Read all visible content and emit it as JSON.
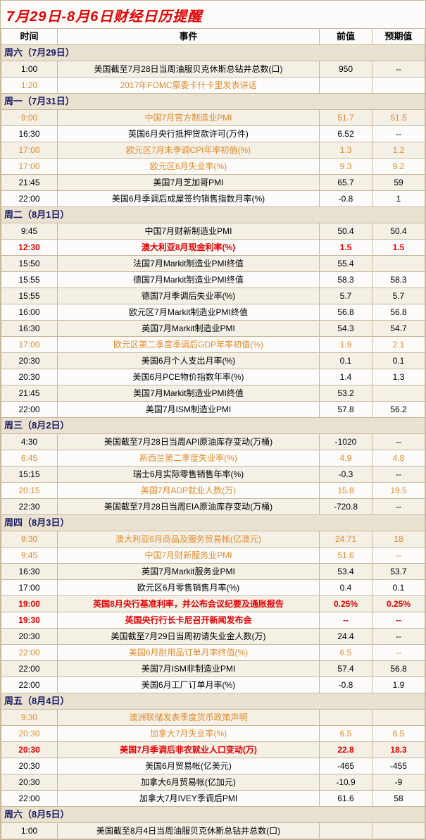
{
  "title": "7月29日-8月6日财经日历提醒",
  "columns": {
    "time": "时间",
    "event": "事件",
    "prev": "前值",
    "exp": "预期值"
  },
  "days": [
    {
      "label": "周六（7月29日）",
      "rows": [
        {
          "t": "1:00",
          "e": "美国截至7月28日当周油服贝克休斯总钻井总数(口)",
          "p": "950",
          "x": "--",
          "cls": "black",
          "alt": true
        },
        {
          "t": "1:20",
          "e": "2017年FOMC票委卡什卡里发表讲话",
          "p": "",
          "x": "",
          "cls": "orange",
          "alt": false
        }
      ]
    },
    {
      "label": "周一（7月31日）",
      "rows": [
        {
          "t": "9:00",
          "e": "中国7月官方制造业PMI",
          "p": "51.7",
          "x": "51.5",
          "cls": "orange",
          "alt": true
        },
        {
          "t": "16:30",
          "e": "英国6月央行抵押贷款许可(万件)",
          "p": "6.52",
          "x": "--",
          "cls": "black",
          "alt": false
        },
        {
          "t": "17:00",
          "e": "欧元区7月未季调CPI年率初值(%)",
          "p": "1.3",
          "x": "1.2",
          "cls": "orange",
          "alt": true
        },
        {
          "t": "17:00",
          "e": "欧元区6月失业率(%)",
          "p": "9.3",
          "x": "9.2",
          "cls": "orange",
          "alt": false
        },
        {
          "t": "21:45",
          "e": "美国7月芝加哥PMI",
          "p": "65.7",
          "x": "59",
          "cls": "black",
          "alt": true
        },
        {
          "t": "22:00",
          "e": "美国6月季调后成屋签约销售指数月率(%)",
          "p": "-0.8",
          "x": "1",
          "cls": "black",
          "alt": false
        }
      ]
    },
    {
      "label": "周二（8月1日）",
      "rows": [
        {
          "t": "9:45",
          "e": "中国7月财新制造业PMI",
          "p": "50.4",
          "x": "50.4",
          "cls": "black",
          "alt": true
        },
        {
          "t": "12:30",
          "e": "澳大利亚8月现金利率(%)",
          "p": "1.5",
          "x": "1.5",
          "cls": "red",
          "alt": false
        },
        {
          "t": "15:50",
          "e": "法国7月Markit制造业PMI终值",
          "p": "55.4",
          "x": "",
          "cls": "black",
          "alt": true
        },
        {
          "t": "15:55",
          "e": "德国7月Markit制造业PMI终值",
          "p": "58.3",
          "x": "58.3",
          "cls": "black",
          "alt": false
        },
        {
          "t": "15:55",
          "e": "德国7月季调后失业率(%)",
          "p": "5.7",
          "x": "5.7",
          "cls": "black",
          "alt": true
        },
        {
          "t": "16:00",
          "e": "欧元区7月Markit制造业PMI终值",
          "p": "56.8",
          "x": "56.8",
          "cls": "black",
          "alt": false
        },
        {
          "t": "16:30",
          "e": "英国7月Markit制造业PMI",
          "p": "54.3",
          "x": "54.7",
          "cls": "black",
          "alt": true
        },
        {
          "t": "17:00",
          "e": "欧元区第二季度季调后GDP年率初值(%)",
          "p": "1.9",
          "x": "2.1",
          "cls": "orange",
          "alt": false
        },
        {
          "t": "20:30",
          "e": "美国6月个人支出月率(%)",
          "p": "0.1",
          "x": "0.1",
          "cls": "black",
          "alt": true
        },
        {
          "t": "20:30",
          "e": "美国6月PCE物价指数年率(%)",
          "p": "1.4",
          "x": "1.3",
          "cls": "black",
          "alt": false
        },
        {
          "t": "21:45",
          "e": "美国7月Markit制造业PMI终值",
          "p": "53.2",
          "x": "",
          "cls": "black",
          "alt": true
        },
        {
          "t": "22:00",
          "e": "美国7月ISM制造业PMI",
          "p": "57.8",
          "x": "56.2",
          "cls": "black",
          "alt": false
        }
      ]
    },
    {
      "label": "周三（8月2日）",
      "rows": [
        {
          "t": "4:30",
          "e": "美国截至7月28日当周API原油库存变动(万桶)",
          "p": "-1020",
          "x": "--",
          "cls": "black",
          "alt": true
        },
        {
          "t": "6:45",
          "e": "新西兰第二季度失业率(%)",
          "p": "4.9",
          "x": "4.8",
          "cls": "orange",
          "alt": false
        },
        {
          "t": "15:15",
          "e": "瑞士6月实际零售销售年率(%)",
          "p": "-0.3",
          "x": "--",
          "cls": "black",
          "alt": true
        },
        {
          "t": "20:15",
          "e": "美国7月ADP就业人数(万)",
          "p": "15.8",
          "x": "19.5",
          "cls": "orange",
          "alt": false
        },
        {
          "t": "22:30",
          "e": "美国截至7月28日当周EIA原油库存变动(万桶)",
          "p": "-720.8",
          "x": "--",
          "cls": "black",
          "alt": true
        }
      ]
    },
    {
      "label": "周四（8月3日）",
      "rows": [
        {
          "t": "9:30",
          "e": "澳大利亚6月商品及服务贸易帐(亿澳元)",
          "p": "24.71",
          "x": "18",
          "cls": "orange",
          "alt": true
        },
        {
          "t": "9:45",
          "e": "中国7月财新服务业PMI",
          "p": "51.6",
          "x": "--",
          "cls": "orange",
          "alt": false
        },
        {
          "t": "16:30",
          "e": "英国7月Markit服务业PMI",
          "p": "53.4",
          "x": "53.7",
          "cls": "black",
          "alt": true
        },
        {
          "t": "17:00",
          "e": "欧元区6月零售销售月率(%)",
          "p": "0.4",
          "x": "0.1",
          "cls": "black",
          "alt": false
        },
        {
          "t": "19:00",
          "e": "英国8月央行基准利率，并公布会议纪要及通胀报告",
          "p": "0.25%",
          "x": "0.25%",
          "cls": "red",
          "alt": true
        },
        {
          "t": "19:30",
          "e": "英国央行行长卡尼召开新闻发布会",
          "p": "--",
          "x": "--",
          "cls": "red",
          "alt": false
        },
        {
          "t": "20:30",
          "e": "美国截至7月29日当周初请失业金人数(万)",
          "p": "24.4",
          "x": "--",
          "cls": "black",
          "alt": true
        },
        {
          "t": "22:00",
          "e": "美国6月耐用品订单月率终值(%)",
          "p": "6.5",
          "x": "--",
          "cls": "orange",
          "alt": false
        },
        {
          "t": "22:00",
          "e": "美国7月ISM非制造业PMI",
          "p": "57.4",
          "x": "56.8",
          "cls": "black",
          "alt": true
        },
        {
          "t": "22:00",
          "e": "美国6月工厂订单月率(%)",
          "p": "-0.8",
          "x": "1.9",
          "cls": "black",
          "alt": false
        }
      ]
    },
    {
      "label": "周五（8月4日）",
      "rows": [
        {
          "t": "9:30",
          "e": "澳洲联储发表季度货币政策声明",
          "p": "",
          "x": "",
          "cls": "orange",
          "alt": true
        },
        {
          "t": "20:30",
          "e": "加拿大7月失业率(%)",
          "p": "6.5",
          "x": "6.5",
          "cls": "orange",
          "alt": false
        },
        {
          "t": "20:30",
          "e": "美国7月季调后非农就业人口变动(万)",
          "p": "22.8",
          "x": "18.3",
          "cls": "red",
          "alt": true
        },
        {
          "t": "20:30",
          "e": "美国6月贸易帐(亿美元)",
          "p": "-465",
          "x": "-455",
          "cls": "black",
          "alt": false
        },
        {
          "t": "20:30",
          "e": "加拿大6月贸易帐(亿加元)",
          "p": "-10.9",
          "x": "-9",
          "cls": "black",
          "alt": true
        },
        {
          "t": "22:00",
          "e": "加拿大7月IVEY季调后PMI",
          "p": "61.6",
          "x": "58",
          "cls": "black",
          "alt": false
        }
      ]
    },
    {
      "label": "周六（8月5日）",
      "rows": [
        {
          "t": "1:00",
          "e": "美国截至8月4日当周油服贝克休斯总钻井总数(口)",
          "p": "",
          "x": "",
          "cls": "black",
          "alt": true
        }
      ]
    }
  ]
}
